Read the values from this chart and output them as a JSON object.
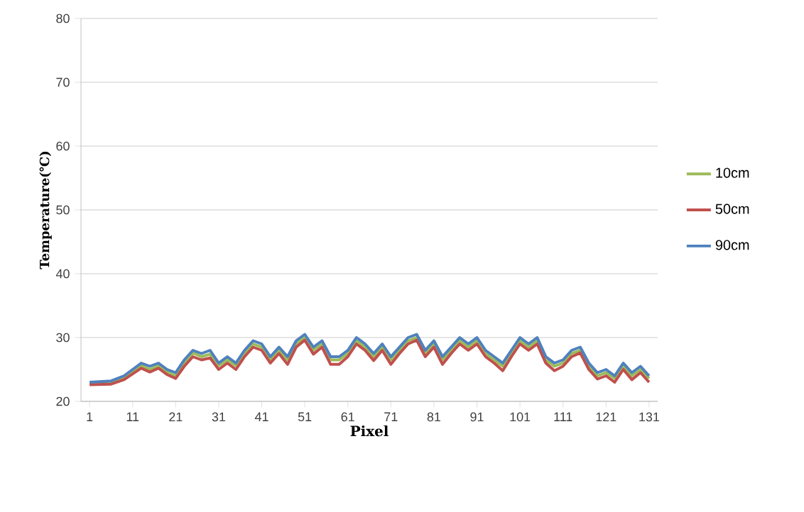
{
  "chart_data": {
    "type": "line",
    "xlabel": "Pixel",
    "ylabel": "Temperature(℃)",
    "x": [
      1,
      6,
      9,
      11,
      13,
      15,
      17,
      19,
      21,
      23,
      25,
      27,
      29,
      31,
      33,
      35,
      37,
      39,
      41,
      43,
      45,
      47,
      49,
      51,
      53,
      55,
      57,
      59,
      61,
      63,
      65,
      67,
      69,
      71,
      73,
      75,
      77,
      79,
      81,
      83,
      85,
      87,
      89,
      91,
      93,
      95,
      97,
      99,
      101,
      103,
      105,
      107,
      109,
      111,
      113,
      115,
      117,
      119,
      121,
      123,
      125,
      127,
      129,
      131
    ],
    "series": [
      {
        "name": "10cm",
        "color": "#9bbb59",
        "values": [
          22.8,
          23,
          23.7,
          24.6,
          25.6,
          25,
          25.6,
          24.6,
          24,
          26,
          27.6,
          27,
          27.4,
          25.6,
          26.5,
          25.6,
          27.5,
          29,
          28.5,
          26.5,
          28,
          26.5,
          29,
          30,
          28,
          29,
          26.5,
          26.5,
          27.5,
          29.5,
          28.5,
          27,
          28.5,
          26.5,
          28,
          29.5,
          30,
          27.5,
          29,
          26.5,
          28,
          29.5,
          28.5,
          29.5,
          27.5,
          26.5,
          25.5,
          27.5,
          29.5,
          28.5,
          29.5,
          26.5,
          25.5,
          26,
          27.5,
          28,
          25.5,
          24,
          24.5,
          23.6,
          25.5,
          24,
          25,
          23.6
        ]
      },
      {
        "name": "50cm",
        "color": "#c0504d",
        "values": [
          22.6,
          22.7,
          23.4,
          24.3,
          25.2,
          24.6,
          25.2,
          24.2,
          23.6,
          25.5,
          27,
          26.5,
          26.8,
          25,
          26,
          25,
          27,
          28.5,
          28,
          26,
          27.5,
          25.8,
          28.5,
          29.6,
          27.4,
          28.5,
          25.8,
          25.8,
          27,
          29,
          28,
          26.4,
          28,
          25.8,
          27.5,
          29,
          29.6,
          27,
          28.5,
          25.8,
          27.5,
          29,
          28,
          29,
          27,
          26,
          24.8,
          27,
          29,
          28,
          29,
          26,
          24.8,
          25.5,
          27,
          27.6,
          25,
          23.5,
          24,
          23,
          25,
          23.4,
          24.5,
          23
        ]
      },
      {
        "name": "90cm",
        "color": "#4f81bd",
        "values": [
          23,
          23.2,
          24,
          25,
          26,
          25.5,
          26,
          25,
          24.5,
          26.5,
          28,
          27.5,
          28,
          26,
          27,
          26,
          28,
          29.5,
          29,
          27,
          28.5,
          27,
          29.5,
          30.5,
          28.5,
          29.5,
          27,
          27,
          28,
          30,
          29,
          27.5,
          29,
          27,
          28.5,
          30,
          30.5,
          28,
          29.5,
          27,
          28.5,
          30,
          29,
          30,
          28,
          27,
          26,
          28,
          30,
          29,
          30,
          27,
          26,
          26.5,
          28,
          28.5,
          26,
          24.5,
          25,
          24,
          26,
          24.5,
          25.5,
          24
        ]
      }
    ],
    "xlim": [
      -1,
      133
    ],
    "xticks": [
      1,
      11,
      21,
      31,
      41,
      51,
      61,
      71,
      81,
      91,
      101,
      111,
      121,
      131
    ],
    "ylim": [
      20,
      80
    ],
    "yticks": [
      20,
      30,
      40,
      50,
      60,
      70,
      80
    ],
    "grid": "y",
    "legend": "right",
    "marker": "none",
    "line_style": "solid"
  }
}
